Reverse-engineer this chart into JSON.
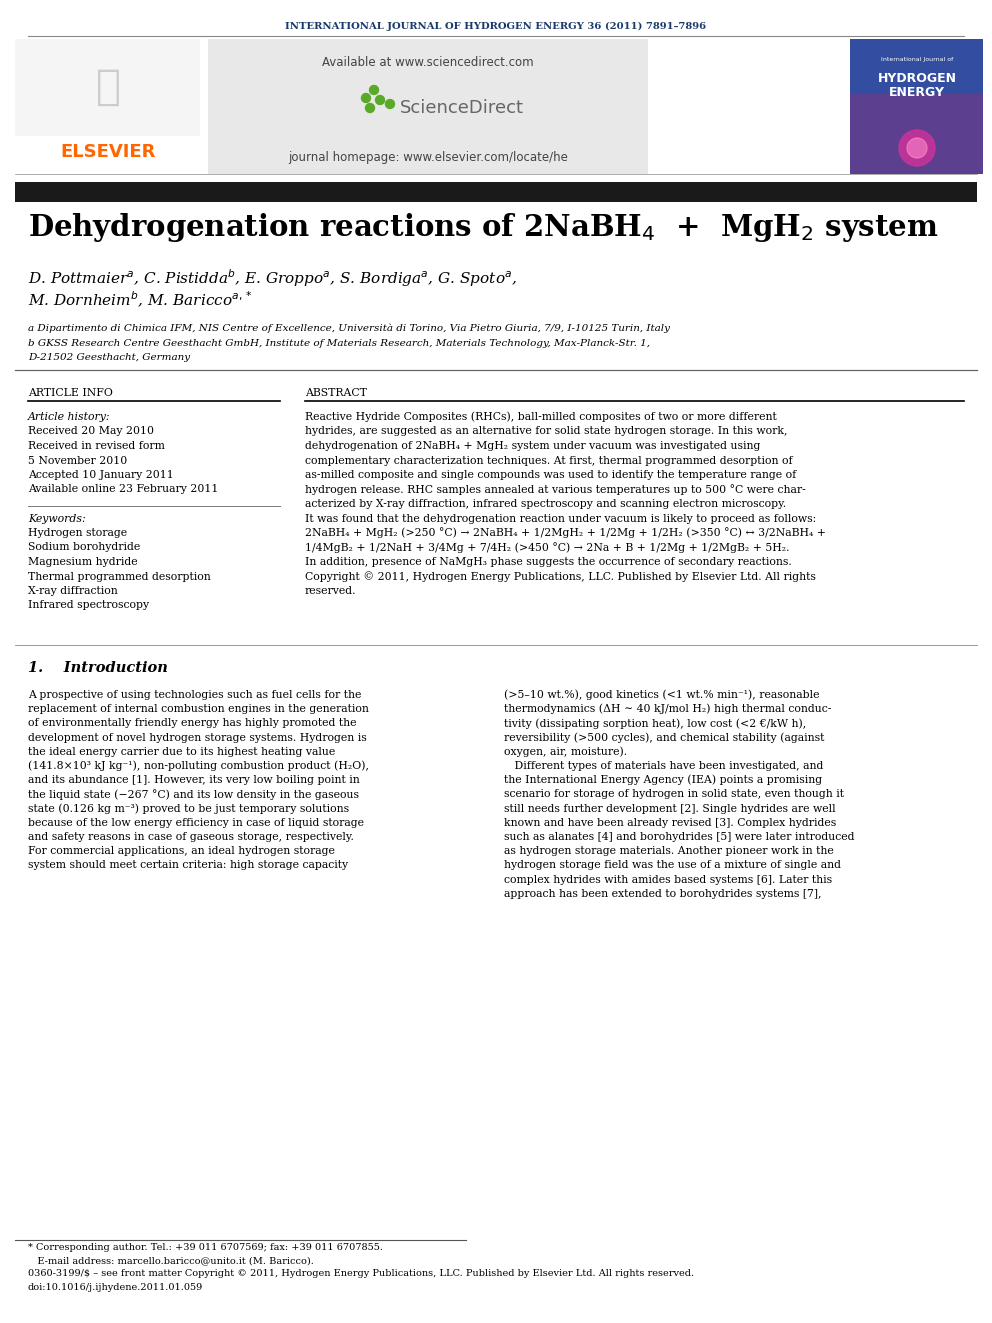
{
  "journal_header": "INTERNATIONAL JOURNAL OF HYDROGEN ENERGY 36 (2011) 7891–7896",
  "journal_header_color": "#1a3a6b",
  "available_text": "Available at www.sciencedirect.com",
  "journal_homepage": "journal homepage: www.elsevier.com/locate/he",
  "elsevier_color": "#ff6600",
  "affil_a": "a Dipartimento di Chimica IFM, NIS Centre of Excellence, Università di Torino, Via Pietro Giuria, 7/9, I-10125 Turin, Italy",
  "affil_b": "b GKSS Research Centre Geesthacht GmbH, Institute of Materials Research, Materials Technology, Max-Planck-Str. 1,",
  "affil_b2": "D-21502 Geesthacht, Germany",
  "section_article_info": "ARTICLE INFO",
  "section_abstract": "ABSTRACT",
  "article_history_label": "Article history:",
  "received1": "Received 20 May 2010",
  "received2": "Received in revised form",
  "received2b": "5 November 2010",
  "accepted": "Accepted 10 January 2011",
  "available_online": "Available online 23 February 2011",
  "keywords_label": "Keywords:",
  "keyword1": "Hydrogen storage",
  "keyword2": "Sodium borohydride",
  "keyword3": "Magnesium hydride",
  "keyword4": "Thermal programmed desorption",
  "keyword5": "X-ray diffraction",
  "keyword6": "Infrared spectroscopy",
  "abstract_lines": [
    "Reactive Hydride Composites (RHCs), ball-milled composites of two or more different",
    "hydrides, are suggested as an alternative for solid state hydrogen storage. In this work,",
    "dehydrogenation of 2NaBH₄ + MgH₂ system under vacuum was investigated using",
    "complementary characterization techniques. At first, thermal programmed desorption of",
    "as-milled composite and single compounds was used to identify the temperature range of",
    "hydrogen release. RHC samples annealed at various temperatures up to 500 °C were char-",
    "acterized by X-ray diffraction, infrared spectroscopy and scanning electron microscopy.",
    "It was found that the dehydrogenation reaction under vacuum is likely to proceed as follows:",
    "2NaBH₄ + MgH₂ (>250 °C) → 2NaBH₄ + 1/2MgH₂ + 1/2Mg + 1/2H₂ (>350 °C) ↔ 3/2NaBH₄ +",
    "1/4MgB₂ + 1/2NaH + 3/4Mg + 7/4H₂ (>450 °C) → 2Na + B + 1/2Mg + 1/2MgB₂ + 5H₂.",
    "In addition, presence of NaMgH₃ phase suggests the occurrence of secondary reactions.",
    "Copyright © 2011, Hydrogen Energy Publications, LLC. Published by Elsevier Ltd. All rights",
    "reserved."
  ],
  "intro_header": "1.    Introduction",
  "intro_col1_lines": [
    "A prospective of using technologies such as fuel cells for the",
    "replacement of internal combustion engines in the generation",
    "of environmentally friendly energy has highly promoted the",
    "development of novel hydrogen storage systems. Hydrogen is",
    "the ideal energy carrier due to its highest heating value",
    "(141.8×10³ kJ kg⁻¹), non-polluting combustion product (H₂O),",
    "and its abundance [1]. However, its very low boiling point in",
    "the liquid state (−267 °C) and its low density in the gaseous",
    "state (0.126 kg m⁻³) proved to be just temporary solutions",
    "because of the low energy efficiency in case of liquid storage",
    "and safety reasons in case of gaseous storage, respectively.",
    "For commercial applications, an ideal hydrogen storage",
    "system should meet certain criteria: high storage capacity"
  ],
  "intro_col2_lines": [
    "(>5–10 wt.%), good kinetics (<1 wt.% min⁻¹), reasonable",
    "thermodynamics (ΔH ∼ 40 kJ/mol H₂) high thermal conduc-",
    "tivity (dissipating sorption heat), low cost (<2 €/kW h),",
    "reversibility (>500 cycles), and chemical stability (against",
    "oxygen, air, moisture).",
    "   Different types of materials have been investigated, and",
    "the International Energy Agency (IEA) points a promising",
    "scenario for storage of hydrogen in solid state, even though it",
    "still needs further development [2]. Single hydrides are well",
    "known and have been already revised [3]. Complex hydrides",
    "such as alanates [4] and borohydrides [5] were later introduced",
    "as hydrogen storage materials. Another pioneer work in the",
    "hydrogen storage field was the use of a mixture of single and",
    "complex hydrides with amides based systems [6]. Later this",
    "approach has been extended to borohydrides systems [7],"
  ],
  "footnote1": "* Corresponding author. Tel.: +39 011 6707569; fax: +39 011 6707855.",
  "footnote2": "   E-mail address: marcello.baricco@unito.it (M. Baricco).",
  "footnote3": "0360-3199/$ – see front matter Copyright © 2011, Hydrogen Energy Publications, LLC. Published by Elsevier Ltd. All rights reserved.",
  "footnote4": "doi:10.1016/j.ijhydene.2011.01.059",
  "bg_color": "#ffffff",
  "black_bar_color": "#1a1a1a"
}
